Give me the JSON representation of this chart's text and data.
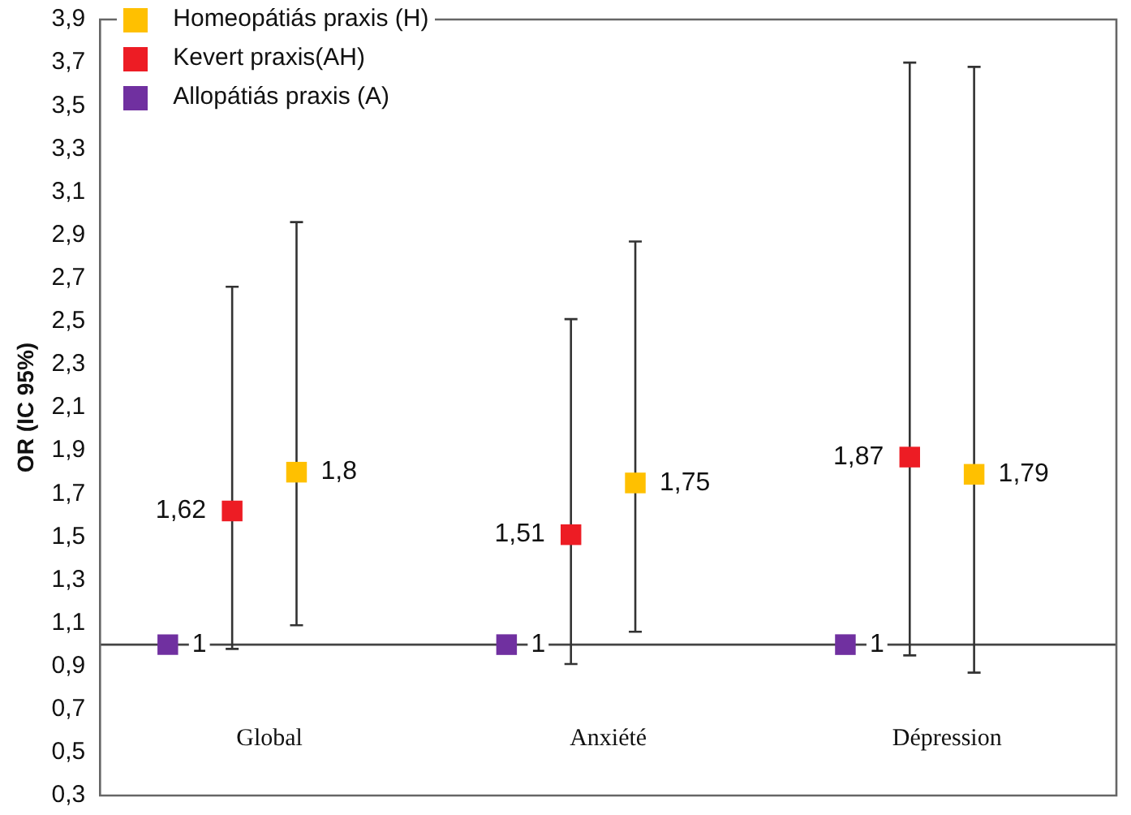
{
  "chart_data": {
    "type": "scatter",
    "ylabel": "OR (IC 95%)",
    "categories": [
      "Global",
      "Anxiété",
      "Dépression"
    ],
    "ylim": [
      0.3,
      3.9
    ],
    "yticks": [
      {
        "value": 0.3,
        "label": "0,3"
      },
      {
        "value": 0.5,
        "label": "0,5"
      },
      {
        "value": 0.7,
        "label": "0,7"
      },
      {
        "value": 0.9,
        "label": "0,9"
      },
      {
        "value": 1.1,
        "label": "1,1"
      },
      {
        "value": 1.3,
        "label": "1,3"
      },
      {
        "value": 1.5,
        "label": "1,5"
      },
      {
        "value": 1.7,
        "label": "1,7"
      },
      {
        "value": 1.9,
        "label": "1,9"
      },
      {
        "value": 2.1,
        "label": "2,1"
      },
      {
        "value": 2.3,
        "label": "2,3"
      },
      {
        "value": 2.5,
        "label": "2,5"
      },
      {
        "value": 2.7,
        "label": "2,7"
      },
      {
        "value": 2.9,
        "label": "2,9"
      },
      {
        "value": 3.1,
        "label": "3,1"
      },
      {
        "value": 3.3,
        "label": "3,3"
      },
      {
        "value": 3.5,
        "label": "3,5"
      },
      {
        "value": 3.7,
        "label": "3,7"
      },
      {
        "value": 3.9,
        "label": "3,9"
      }
    ],
    "grid": false,
    "legend": "top left",
    "marker": "square",
    "ref_lines": [
      {
        "axis": "y",
        "value": 1
      }
    ],
    "series": [
      {
        "name": "Homeopátiás praxis (H)",
        "color": "#ffc000",
        "values": [
          1.8,
          1.75,
          1.79
        ],
        "errors": [
          [
            1.09,
            2.96
          ],
          [
            1.06,
            2.87
          ],
          [
            0.87,
            3.68
          ]
        ],
        "value_labels": [
          "1,8",
          "1,75",
          "1,79"
        ]
      },
      {
        "name": "Kevert praxis(AH)",
        "color": "#ed1c24",
        "values": [
          1.62,
          1.51,
          1.87
        ],
        "errors": [
          [
            0.98,
            2.66
          ],
          [
            0.91,
            2.51
          ],
          [
            0.95,
            3.7
          ]
        ],
        "value_labels": [
          "1,62",
          "1,51",
          "1,87"
        ]
      },
      {
        "name": "Allopátiás praxis (A)",
        "color": "#7030a0",
        "values": [
          1,
          1,
          1
        ],
        "value_labels": [
          "1",
          "1",
          "1"
        ]
      }
    ]
  }
}
